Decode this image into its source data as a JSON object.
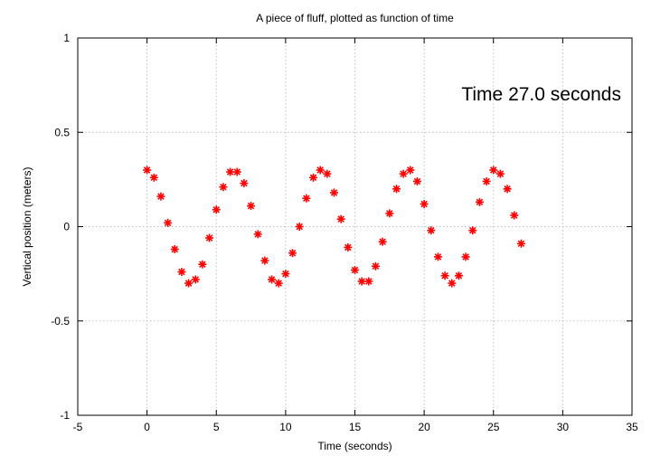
{
  "chart_data": {
    "type": "scatter",
    "title": "A piece of fluff, plotted as function of time",
    "xlabel": "Time (seconds)",
    "ylabel": "Vertical position (meters)",
    "annotation": "Time 27.0 seconds",
    "xlim": [
      -5,
      35
    ],
    "ylim": [
      -1,
      1
    ],
    "xticks": [
      -5,
      0,
      5,
      10,
      15,
      20,
      25,
      30,
      35
    ],
    "yticks": [
      -1,
      -0.5,
      0,
      0.5,
      1
    ],
    "xtick_labels": [
      "-5",
      "0",
      "5",
      "10",
      "15",
      "20",
      "25",
      "30",
      "35"
    ],
    "ytick_labels": [
      "-1",
      "-0.5",
      "0",
      "0.5",
      "1"
    ],
    "grid": true,
    "legend": "none",
    "marker_color": "#ff0000",
    "series": [
      {
        "x": [
          0,
          0.5,
          1,
          1.5,
          2,
          2.5,
          3,
          3.5,
          4,
          4.5,
          5,
          5.5,
          6,
          6.5,
          7,
          7.5,
          8,
          8.5,
          9,
          9.5,
          10,
          10.5,
          11,
          11.5,
          12,
          12.5,
          13,
          13.5,
          14,
          14.5,
          15,
          15.5,
          16,
          16.5,
          17,
          17.5,
          18,
          18.5,
          19,
          19.5,
          20,
          20.5,
          21,
          21.5,
          22,
          22.5,
          23,
          23.5,
          24,
          24.5,
          25,
          25.5,
          26,
          26.5,
          27
        ],
        "y": [
          0.3,
          0.26,
          0.16,
          0.02,
          -0.12,
          -0.24,
          -0.3,
          -0.28,
          -0.2,
          -0.06,
          0.09,
          0.21,
          0.29,
          0.29,
          0.23,
          0.11,
          -0.04,
          -0.18,
          -0.28,
          -0.3,
          -0.25,
          -0.14,
          0.0,
          0.15,
          0.26,
          0.3,
          0.28,
          0.18,
          0.04,
          -0.11,
          -0.23,
          -0.29,
          -0.29,
          -0.21,
          -0.08,
          0.07,
          0.2,
          0.28,
          0.3,
          0.24,
          0.12,
          -0.02,
          -0.16,
          -0.26,
          -0.3,
          -0.26,
          -0.16,
          -0.02,
          0.13,
          0.24,
          0.3,
          0.28,
          0.2,
          0.06,
          -0.09
        ]
      }
    ]
  }
}
